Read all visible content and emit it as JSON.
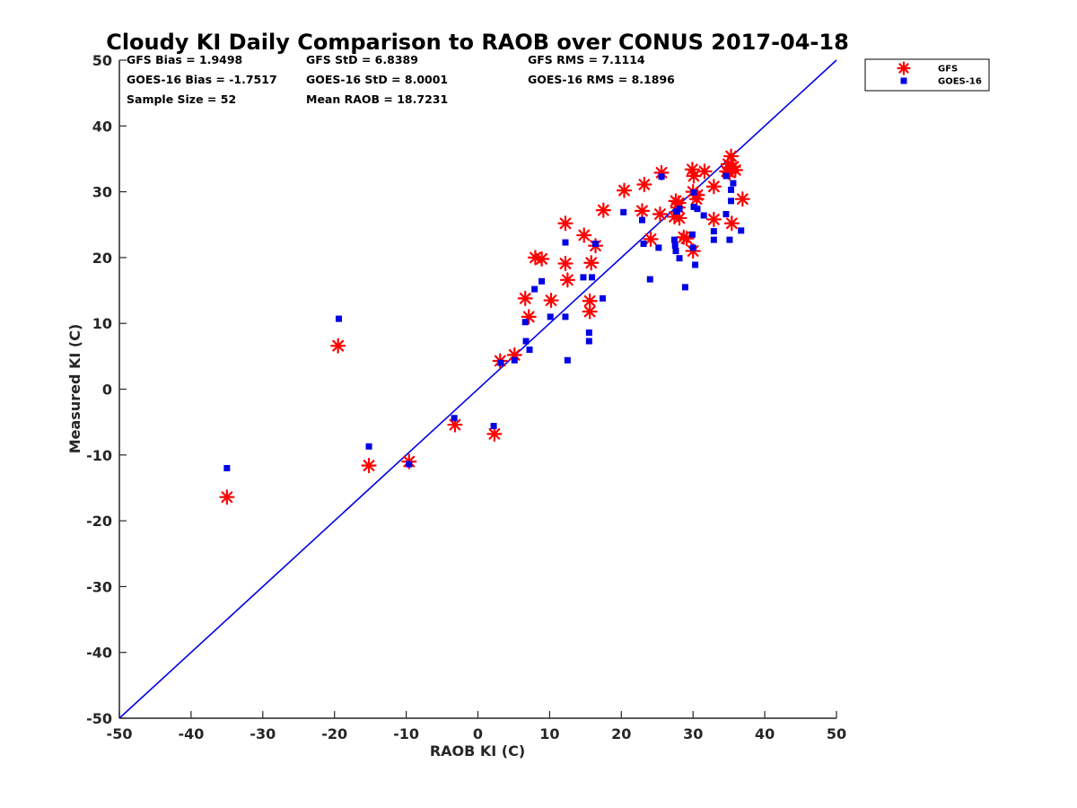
{
  "chart_data": {
    "type": "scatter",
    "title": "Cloudy KI Daily Comparison to RAOB over CONUS 2017-04-18",
    "xlabel": "RAOB KI (C)",
    "ylabel": "Measured KI (C)",
    "xlim": [
      -50,
      50
    ],
    "ylim": [
      -50,
      50
    ],
    "xticks": [
      "-50",
      "-40",
      "-30",
      "-20",
      "-10",
      "0",
      "10",
      "20",
      "30",
      "40",
      "50"
    ],
    "yticks": [
      "50",
      "40",
      "30",
      "20",
      "10",
      "0",
      "-10",
      "-20",
      "-30",
      "-40",
      "-50"
    ],
    "grid": false,
    "legend_position": "outside-top-right",
    "one_to_one_line": {
      "from": [
        -50,
        -50
      ],
      "to": [
        50,
        50
      ],
      "color": "#0000e6"
    },
    "stats": [
      [
        "GFS Bias = 1.9498",
        "GFS StD = 6.8389",
        "GFS RMS = 7.1114"
      ],
      [
        "GOES-16 Bias = -1.7517",
        "GOES-16 StD = 8.0001",
        "GOES-16 RMS = 8.1896"
      ],
      [
        "Sample Size = 52",
        "Mean RAOB = 18.7231",
        ""
      ]
    ],
    "series": [
      {
        "name": "GFS",
        "marker": "asterisk",
        "color": "#ff0000",
        "points": [
          [
            -35,
            -16.4
          ],
          [
            -19.5,
            6.6
          ],
          [
            -15.2,
            -11.6
          ],
          [
            -9.6,
            -11
          ],
          [
            -3.2,
            -5.4
          ],
          [
            2.3,
            -6.8
          ],
          [
            3.1,
            4.3
          ],
          [
            5.1,
            5.2
          ],
          [
            6.6,
            13.8
          ],
          [
            7.1,
            11
          ],
          [
            8,
            20
          ],
          [
            8.9,
            19.8
          ],
          [
            10.2,
            13.5
          ],
          [
            12.2,
            25.2
          ],
          [
            12.2,
            19.1
          ],
          [
            12.5,
            16.6
          ],
          [
            14.8,
            23.4
          ],
          [
            15.6,
            13.4
          ],
          [
            15.6,
            11.8
          ],
          [
            15.8,
            19.2
          ],
          [
            16.4,
            21.8
          ],
          [
            17.5,
            27.2
          ],
          [
            20.4,
            30.2
          ],
          [
            22.9,
            27.1
          ],
          [
            23.2,
            31.1
          ],
          [
            24.1,
            22.8
          ],
          [
            25.4,
            26.6
          ],
          [
            25.6,
            32.9
          ],
          [
            27.4,
            26.2
          ],
          [
            27.6,
            28.6
          ],
          [
            28.0,
            28.3
          ],
          [
            28.1,
            26.0
          ],
          [
            28.7,
            23.1
          ],
          [
            29.1,
            22.9
          ],
          [
            29.9,
            33.4
          ],
          [
            30,
            21
          ],
          [
            30,
            30
          ],
          [
            30.1,
            32.4
          ],
          [
            30.5,
            28.9
          ],
          [
            31.6,
            33.1
          ],
          [
            32.9,
            30.8
          ],
          [
            32.9,
            25.8
          ],
          [
            34.7,
            33.1
          ],
          [
            35.1,
            32.9
          ],
          [
            35.3,
            35.4
          ],
          [
            35.6,
            33.8
          ],
          [
            35.4,
            25.2
          ],
          [
            35.9,
            33.3
          ],
          [
            36.9,
            28.9
          ],
          [
            34.9,
            34.2
          ],
          [
            30.6,
            29.5
          ],
          [
            27.9,
            27.6
          ]
        ]
      },
      {
        "name": "GOES-16",
        "marker": "square",
        "color": "#0000e6",
        "points": [
          [
            -35,
            -12
          ],
          [
            -19.4,
            10.7
          ],
          [
            -15.2,
            -8.7
          ],
          [
            -9.6,
            -11.4
          ],
          [
            -3.3,
            -4.4
          ],
          [
            2.2,
            -5.6
          ],
          [
            3.2,
            4.0
          ],
          [
            5.1,
            4.4
          ],
          [
            6.6,
            10.2
          ],
          [
            6.7,
            7.3
          ],
          [
            7.2,
            6.0
          ],
          [
            7.9,
            15.2
          ],
          [
            8.9,
            16.4
          ],
          [
            10.1,
            11.0
          ],
          [
            12.2,
            22.3
          ],
          [
            12.2,
            11.0
          ],
          [
            12.5,
            4.4
          ],
          [
            14.7,
            17.0
          ],
          [
            15.5,
            8.6
          ],
          [
            15.5,
            7.3
          ],
          [
            15.9,
            17.0
          ],
          [
            16.4,
            22.1
          ],
          [
            17.4,
            13.8
          ],
          [
            20.3,
            26.9
          ],
          [
            22.9,
            25.7
          ],
          [
            23.1,
            22.1
          ],
          [
            24,
            16.7
          ],
          [
            25.2,
            21.5
          ],
          [
            25.6,
            32.3
          ],
          [
            27.4,
            22.7
          ],
          [
            27.5,
            21.8
          ],
          [
            27.6,
            21.0
          ],
          [
            27.7,
            27.0
          ],
          [
            28.1,
            27.4
          ],
          [
            28.1,
            19.9
          ],
          [
            28.9,
            15.5
          ],
          [
            29.9,
            23.5
          ],
          [
            30,
            21.5
          ],
          [
            30.1,
            27.7
          ],
          [
            30.1,
            29.9
          ],
          [
            30.3,
            18.9
          ],
          [
            30.6,
            27.4
          ],
          [
            31.5,
            26.4
          ],
          [
            32.9,
            24.0
          ],
          [
            32.9,
            22.7
          ],
          [
            34.6,
            26.6
          ],
          [
            34.6,
            32.4
          ],
          [
            35.1,
            22.7
          ],
          [
            35.3,
            28.6
          ],
          [
            35.3,
            30.3
          ],
          [
            35.6,
            31.3
          ],
          [
            36.7,
            24.1
          ]
        ]
      }
    ]
  }
}
